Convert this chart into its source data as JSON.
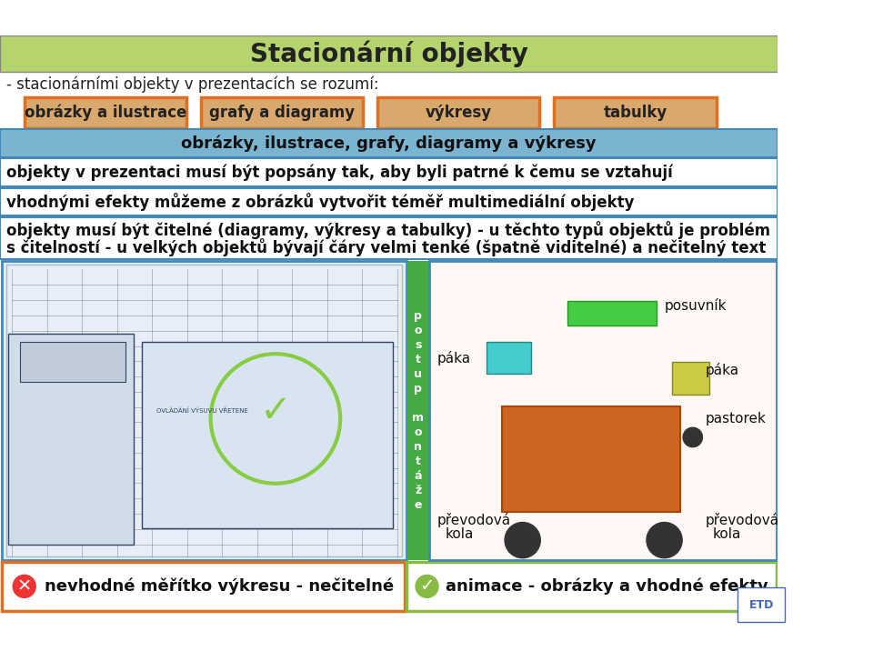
{
  "title": "Stacionární objekty",
  "title_bg": "#b5d46e",
  "title_color": "#333333",
  "subtitle": "- stacionárními objekty v prezentacích se rozumí:",
  "boxes": [
    "obrázky a ilustrace",
    "grafy a diagramy",
    "výkresy",
    "tabulky"
  ],
  "box_bg": "#d9a86c",
  "box_border": "#e07020",
  "row2_text": "obrázky, ilustrace, grafy, diagramy a výkresy",
  "row2_bg": "#7ab4d0",
  "row2_border": "#4488bb",
  "row3_text": "objekty v prezentaci musí být popsány tak, aby byli patrné k čemu se vztahují",
  "row3_bg": "#ffffff",
  "row3_border": "#4488bb",
  "row4_text": "vhodnými efekty můžeme z obrázků vytvořit téměř multimediální objekty",
  "row4_bg": "#ffffff",
  "row4_border": "#4488bb",
  "row5_line1": "objekty musí být čitelné (diagramy, výkresy a tabulky) - u těchto typů objektů je problém",
  "row5_line2": "s čitelností - u velkých objektů bývají čáry velmi tenké (špatně viditelné) a nečitelný text",
  "row5_bg": "#ffffff",
  "row5_border": "#4488bb",
  "bottom_left_text": "nevhodné měřítko výkresu - nečitelné",
  "bottom_right_text": "animace - obrázky a vhodné efekty",
  "bottom_left_bg": "#ffffff",
  "bottom_right_bg": "#ffffff",
  "bottom_left_border": "#e07020",
  "bottom_right_border": "#88bb44",
  "left_panel_bg": "#ddeeff",
  "left_panel_border": "#4488bb",
  "right_panel_bg": "#ffffff",
  "right_panel_border": "#4488bb",
  "green_col_bg": "#44aa44",
  "etd_color": "#4466bb",
  "bg_color": "#ffffff"
}
